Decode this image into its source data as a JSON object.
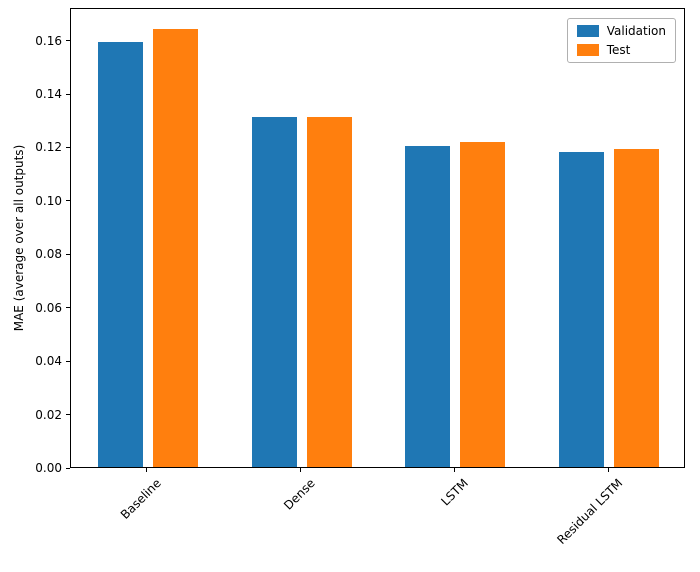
{
  "chart_data": {
    "type": "bar",
    "title": "",
    "xlabel": "",
    "ylabel": "MAE (average over all outputs)",
    "categories": [
      "Baseline",
      "Dense",
      "LSTM",
      "Residual LSTM"
    ],
    "series": [
      {
        "name": "Validation",
        "color": "#1f77b4",
        "values": [
          0.159,
          0.131,
          0.12,
          0.118
        ]
      },
      {
        "name": "Test",
        "color": "#ff7f0e",
        "values": [
          0.164,
          0.131,
          0.1215,
          0.119
        ]
      }
    ],
    "ylim": [
      0,
      0.1722
    ],
    "yticks": [
      0.0,
      0.02,
      0.04,
      0.06,
      0.08,
      0.1,
      0.12,
      0.14,
      0.16
    ],
    "legend_position": "upper right",
    "grid": false
  }
}
